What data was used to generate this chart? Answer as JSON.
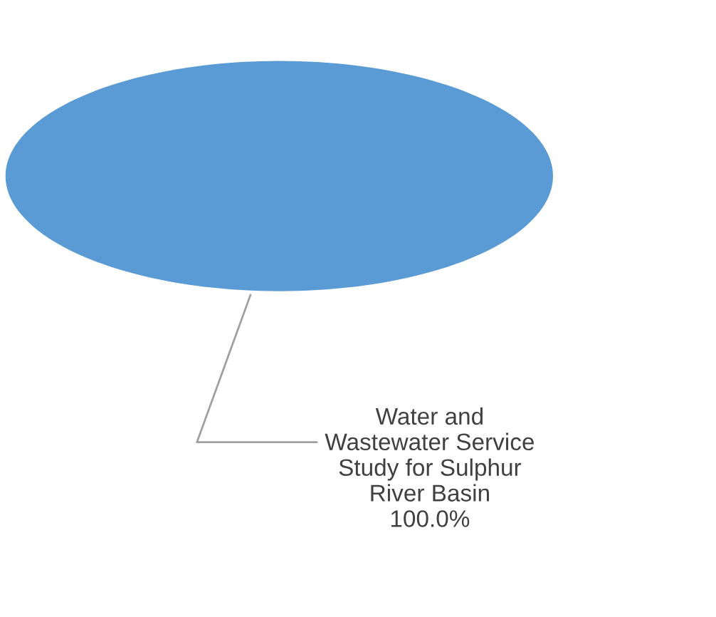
{
  "chart_data": {
    "type": "pie",
    "categories": [
      "Water and\nWastewater Service\nStudy for Sulphur\nRiver Basin"
    ],
    "values": [
      100
    ],
    "colors": [
      "#5b9bd5"
    ],
    "value_labels": [
      "100.0%"
    ],
    "legend": false
  }
}
